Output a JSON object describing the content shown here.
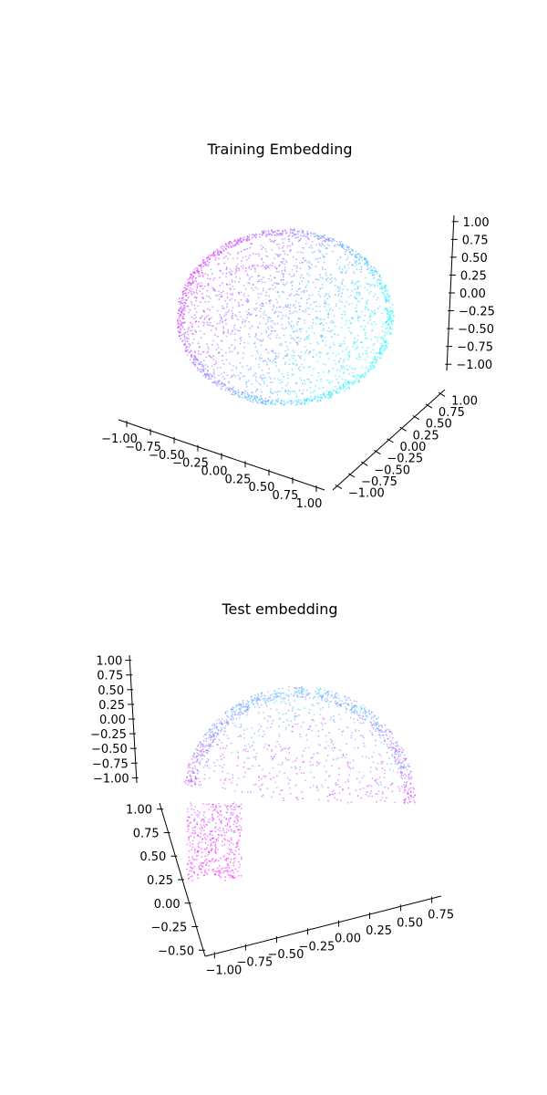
{
  "chart_data": [
    {
      "type": "scatter",
      "title": "Training Embedding",
      "xlabel": "",
      "ylabel": "",
      "zlabel": "",
      "xlim": [
        -1.0,
        1.0
      ],
      "ylim": [
        -1.0,
        1.0
      ],
      "zlim": [
        -1.0,
        1.0
      ],
      "x_ticks": [
        "−1.00",
        "−0.75",
        "−0.50",
        "−0.25",
        "0.00",
        "0.25",
        "0.50",
        "0.75",
        "1.00"
      ],
      "y_ticks": [
        "−1.00",
        "−0.75",
        "−0.50",
        "−0.25",
        "0.00",
        "0.25",
        "0.50",
        "0.75",
        "1.00"
      ],
      "z_ticks": [
        "−1.00",
        "−0.75",
        "−0.50",
        "−0.25",
        "0.00",
        "0.25",
        "0.50",
        "0.75",
        "1.00"
      ],
      "grid": false,
      "colormap": [
        "#ff00ff",
        "#00ffff"
      ],
      "description_shape": "points on unit sphere surface"
    },
    {
      "type": "scatter",
      "title": "Test embedding",
      "xlabel": "",
      "ylabel": "",
      "zlabel": "",
      "xlim": [
        -1.0,
        0.9
      ],
      "ylim": [
        -0.6,
        1.05
      ],
      "zlim": [
        -1.0,
        1.0
      ],
      "x_ticks": [
        "−1.00",
        "−0.75",
        "−0.50",
        "−0.25",
        "0.00",
        "0.25",
        "0.50",
        "0.75"
      ],
      "y_ticks": [
        "−0.50",
        "−0.25",
        "0.00",
        "0.25",
        "0.50",
        "0.75",
        "1.00"
      ],
      "z_ticks": [
        "−1.00",
        "−0.75",
        "−0.50",
        "−0.25",
        "0.00",
        "0.25",
        "0.50",
        "0.75",
        "1.00"
      ],
      "grid": false,
      "colormap": [
        "#ff00ff",
        "#00ffff"
      ],
      "description_shape": "points on partial sphere cap"
    }
  ]
}
